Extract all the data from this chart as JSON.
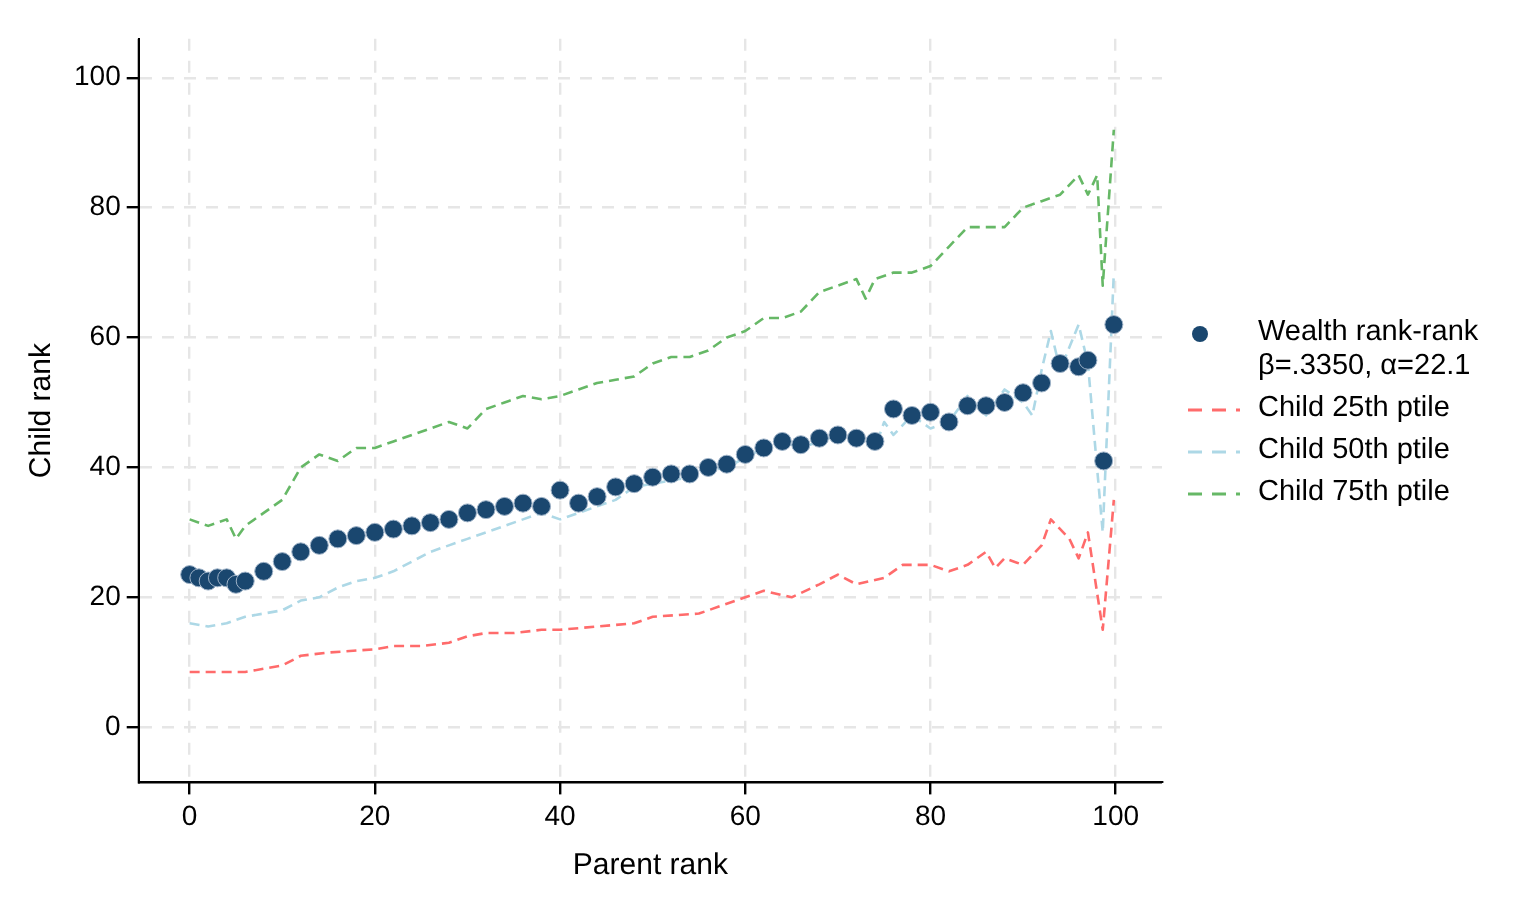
{
  "chart_data": {
    "type": "scatter",
    "xlabel": "Parent rank",
    "ylabel": "Child rank",
    "xlim": [
      -5.5,
      105
    ],
    "ylim": [
      -8.5,
      106
    ],
    "xticks": [
      0,
      20,
      40,
      60,
      80,
      100
    ],
    "yticks": [
      0,
      20,
      40,
      60,
      80,
      100
    ],
    "grid": true,
    "legend": "right",
    "marker": "circle",
    "series": [
      {
        "name": "Wealth rank-rank β=.3350, α=22.1",
        "color": "#1a476f",
        "x": [
          0,
          1,
          2,
          3,
          4,
          5,
          6,
          8,
          10,
          12,
          14,
          16,
          18,
          20,
          22,
          24,
          26,
          28,
          30,
          32,
          34,
          36,
          38,
          40,
          42,
          44,
          46,
          48,
          50,
          52,
          54,
          56,
          58,
          60,
          62,
          64,
          66,
          68,
          70,
          72,
          74,
          76,
          78,
          80,
          82,
          84,
          86,
          88,
          90,
          92,
          94,
          96,
          97,
          98.7,
          99.8
        ],
        "values": [
          23.5,
          23,
          22.5,
          23,
          23,
          22,
          22.5,
          24,
          25.5,
          27,
          28,
          29,
          29.5,
          30,
          30.5,
          31,
          31.5,
          32,
          33,
          33.5,
          34,
          34.5,
          34,
          36.5,
          34.5,
          35.5,
          37,
          37.5,
          38.5,
          39,
          39,
          40,
          40.5,
          42,
          43,
          44,
          43.5,
          44.5,
          45,
          44.5,
          44,
          49,
          48,
          48.5,
          47,
          49.5,
          49.5,
          50,
          51.5,
          53,
          56,
          55.5,
          56.5,
          41,
          62
        ]
      },
      {
        "name": "Child 25th ptile",
        "type": "line",
        "line_style": "dashed",
        "marker": "none",
        "color": "#ff6b6b",
        "x": [
          0,
          5,
          6,
          8,
          10,
          12,
          15,
          20,
          22,
          25,
          28,
          30,
          32,
          35,
          38,
          40,
          44,
          48,
          50,
          55,
          58,
          60,
          62,
          65,
          68,
          70,
          72,
          75,
          77,
          80,
          82,
          84,
          86,
          87,
          88,
          90,
          92,
          93,
          95,
          96,
          97,
          98.6,
          99.8
        ],
        "values": [
          8.5,
          8.5,
          8.5,
          9,
          9.5,
          11,
          11.5,
          12,
          12.5,
          12.5,
          13,
          14,
          14.5,
          14.5,
          15,
          15,
          15.5,
          16,
          17,
          17.5,
          19,
          20,
          21,
          20,
          22,
          23.5,
          22,
          23,
          25,
          25,
          24,
          25,
          27,
          24.5,
          26,
          25,
          28,
          32,
          29,
          26,
          30,
          15,
          35
        ]
      },
      {
        "name": "Child 50th ptile",
        "type": "line",
        "line_style": "dashed",
        "marker": "none",
        "color": "#add8e6",
        "x": [
          0,
          2,
          4,
          6,
          8,
          10,
          12,
          14,
          16,
          18,
          20,
          22,
          24,
          26,
          28,
          30,
          32,
          34,
          36,
          38,
          40,
          42,
          44,
          46,
          48,
          50,
          52,
          54,
          56,
          58,
          60,
          62,
          64,
          66,
          68,
          70,
          72,
          74,
          75,
          76,
          78,
          80,
          82,
          84,
          86,
          88,
          90,
          91,
          92,
          93,
          94,
          96,
          97,
          98.6,
          99.8
        ],
        "values": [
          16,
          15.5,
          16,
          17,
          17.5,
          18,
          19.5,
          20,
          21.5,
          22.5,
          23,
          24,
          25.5,
          27,
          28,
          29,
          30,
          31,
          32,
          33,
          32,
          33,
          34,
          35,
          37,
          37.5,
          38,
          38.5,
          39.5,
          40,
          41.5,
          43,
          44,
          43,
          44,
          45,
          44,
          43,
          47,
          45,
          48,
          46,
          47,
          51,
          48,
          52,
          50,
          48,
          55,
          61,
          55,
          62,
          56,
          30,
          70
        ]
      },
      {
        "name": "Child 75th ptile",
        "type": "line",
        "line_style": "dashed",
        "marker": "none",
        "color": "#66b866",
        "x": [
          0,
          2,
          4,
          5,
          6,
          8,
          10,
          12,
          14,
          16,
          18,
          20,
          22,
          24,
          26,
          28,
          30,
          32,
          34,
          36,
          38,
          40,
          42,
          44,
          46,
          48,
          50,
          52,
          54,
          56,
          58,
          60,
          62,
          64,
          66,
          68,
          70,
          72,
          73,
          74,
          76,
          78,
          80,
          82,
          84,
          86,
          88,
          90,
          92,
          94,
          96,
          97,
          98,
          98.6,
          99.8
        ],
        "values": [
          32,
          31,
          32,
          29,
          31,
          33,
          35,
          40,
          42,
          41,
          43,
          43,
          44,
          45,
          46,
          47,
          46,
          49,
          50,
          51,
          50.5,
          51,
          52,
          53,
          53.5,
          54,
          56,
          57,
          57,
          58,
          60,
          61,
          63,
          63,
          64,
          67,
          68,
          69,
          66,
          69,
          70,
          70,
          71,
          74,
          77,
          77,
          77,
          80,
          81,
          82,
          85,
          82,
          85,
          68,
          92
        ]
      }
    ]
  }
}
